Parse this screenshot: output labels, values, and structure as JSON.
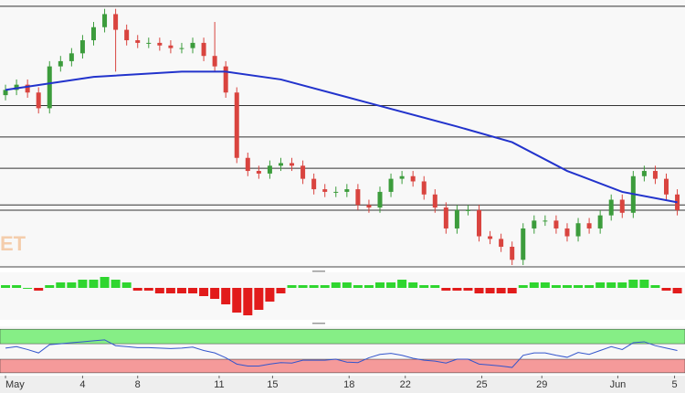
{
  "chart_data": {
    "type": "candlestick",
    "watermark": "ET",
    "open": [
      65,
      67,
      69,
      66,
      60,
      76,
      78,
      81,
      86,
      91,
      96,
      90,
      86,
      85,
      85,
      84,
      83,
      83,
      85,
      80,
      76,
      66,
      41,
      36,
      35,
      38,
      39,
      38,
      33,
      29,
      28,
      28,
      29,
      23,
      22,
      28,
      33,
      34,
      32,
      27,
      22,
      14,
      21,
      21,
      11,
      10,
      7,
      2,
      14,
      17,
      17,
      14,
      11,
      16,
      14,
      19,
      25,
      20,
      34,
      36,
      33,
      27
    ],
    "high": [
      69,
      71,
      71,
      68,
      78,
      80,
      83,
      88,
      93,
      98,
      98,
      92,
      88,
      87,
      87,
      86,
      85,
      87,
      87,
      93,
      78,
      68,
      43,
      38,
      40,
      41,
      41,
      40,
      35,
      31,
      30,
      31,
      31,
      25,
      30,
      35,
      36,
      36,
      34,
      29,
      24,
      23,
      23,
      23,
      13,
      12,
      9,
      16,
      19,
      19,
      19,
      16,
      18,
      18,
      21,
      27,
      27,
      36,
      38,
      38,
      35,
      29
    ],
    "low": [
      63,
      65,
      64,
      58,
      58,
      74,
      76,
      79,
      84,
      89,
      74,
      84,
      83,
      83,
      82,
      81,
      81,
      81,
      78,
      74,
      64,
      39,
      34,
      33,
      33,
      36,
      36,
      31,
      27,
      26,
      26,
      26,
      21,
      20,
      20,
      26,
      31,
      30,
      25,
      20,
      12,
      12,
      19,
      9,
      8,
      5,
      0,
      0,
      12,
      15,
      12,
      9,
      9,
      12,
      12,
      17,
      18,
      18,
      32,
      31,
      25,
      19
    ],
    "close": [
      67,
      69,
      66,
      60,
      76,
      78,
      81,
      86,
      91,
      96,
      90,
      86,
      85,
      85,
      84,
      83,
      83,
      85,
      80,
      76,
      66,
      41,
      36,
      35,
      38,
      39,
      38,
      33,
      29,
      28,
      28,
      29,
      23,
      22,
      28,
      33,
      34,
      32,
      27,
      22,
      14,
      21,
      21,
      11,
      10,
      7,
      2,
      14,
      17,
      17,
      14,
      11,
      16,
      14,
      19,
      25,
      20,
      34,
      36,
      33,
      27,
      21
    ],
    "up_color": "#3c9c3c",
    "down_color": "#d9443f",
    "ylim": [
      0,
      100
    ],
    "levels": [
      99,
      61,
      49,
      37,
      23,
      21
    ],
    "moving_average": {
      "color": "#2233cc",
      "x": [
        0,
        8,
        16,
        20,
        25,
        33,
        41,
        46,
        51,
        56,
        61
      ],
      "values": [
        67,
        72,
        74,
        74,
        71,
        62,
        53,
        47,
        36,
        28,
        24
      ]
    },
    "xlim": [
      -0.5,
      61.7
    ],
    "xticks": [
      {
        "value": 0,
        "label": "May"
      },
      {
        "value": 7,
        "label": "4"
      },
      {
        "value": 12,
        "label": "8"
      },
      {
        "value": 19.4,
        "label": "11"
      },
      {
        "value": 24.25,
        "label": "15"
      },
      {
        "value": 31.2,
        "label": "18"
      },
      {
        "value": 36.3,
        "label": "22"
      },
      {
        "value": 43.25,
        "label": "25"
      },
      {
        "value": 48.7,
        "label": "29"
      },
      {
        "value": 55.6,
        "label": "Jun"
      },
      {
        "value": 60.75,
        "label": "5"
      }
    ],
    "histogram": {
      "ylim": [
        -11,
        5
      ],
      "values": [
        1,
        1,
        0,
        -1,
        1,
        2,
        2,
        3,
        3,
        4,
        3,
        2,
        -1,
        -1,
        -2,
        -2,
        -2,
        -2,
        -3,
        -4,
        -6,
        -9,
        -10,
        -8,
        -5,
        -2,
        1,
        1,
        1,
        1,
        2,
        2,
        1,
        1,
        2,
        2,
        3,
        2,
        1,
        1,
        -1,
        -1,
        -1,
        -2,
        -2,
        -2,
        -2,
        1,
        2,
        2,
        1,
        1,
        1,
        1,
        2,
        2,
        2,
        3,
        3,
        1,
        -1,
        -2
      ]
    },
    "oscillator": {
      "ylim": [
        0,
        100
      ],
      "color": "#3355cc",
      "upper_band": [
        64,
        94
      ],
      "lower_band": [
        4,
        32
      ],
      "values": [
        55,
        58,
        52,
        45,
        62,
        64,
        66,
        68,
        70,
        72,
        60,
        58,
        56,
        56,
        55,
        54,
        55,
        57,
        50,
        45,
        35,
        22,
        18,
        18,
        22,
        25,
        24,
        30,
        30,
        30,
        32,
        26,
        25,
        35,
        42,
        44,
        40,
        34,
        30,
        28,
        24,
        32,
        32,
        22,
        20,
        18,
        15,
        40,
        45,
        45,
        40,
        36,
        46,
        42,
        50,
        58,
        52,
        66,
        68,
        60,
        55,
        50
      ]
    }
  }
}
